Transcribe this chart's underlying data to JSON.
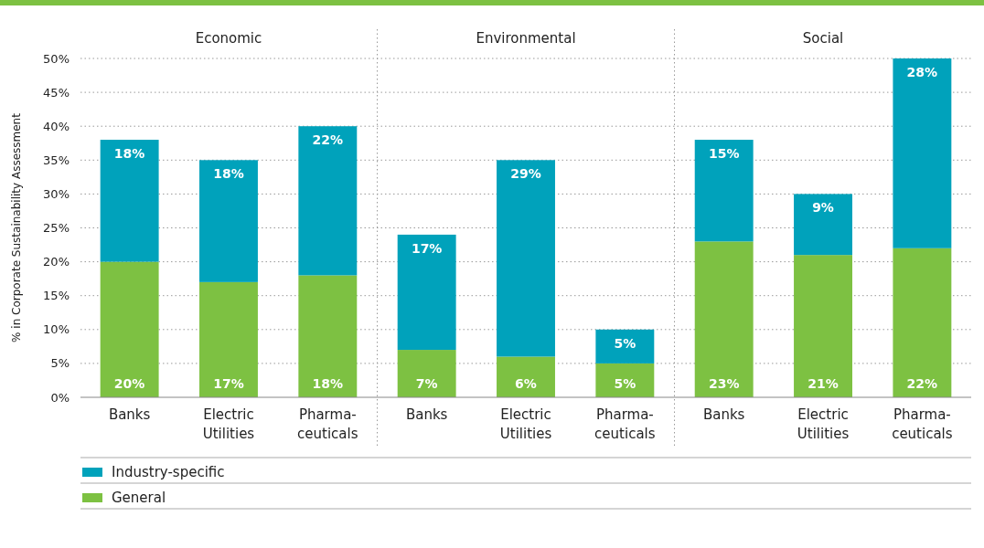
{
  "chart_data": {
    "type": "bar",
    "stacked": true,
    "ylabel": "% in Corporate Sustainability Assessment",
    "categories": [
      "Banks",
      "Electric Utilities",
      "Pharma-ceuticals",
      "Banks",
      "Electric Utilities",
      "Pharma-ceuticals",
      "Banks",
      "Electric Utilities",
      "Pharma-ceuticals"
    ],
    "series": [
      {
        "name": "General",
        "color": "#7dc142",
        "values": [
          20,
          17,
          18,
          7,
          6,
          5,
          23,
          21,
          22
        ],
        "value_labels": [
          "20%",
          "17%",
          "18%",
          "7%",
          "6%",
          "5%",
          "23%",
          "21%",
          "22%"
        ]
      },
      {
        "name": "Industry-specific",
        "color": "#00a2bb",
        "values": [
          18,
          18,
          22,
          17,
          29,
          5,
          15,
          9,
          28
        ],
        "value_labels": [
          "18%",
          "18%",
          "22%",
          "17%",
          "29%",
          "5%",
          "15%",
          "9%",
          "28%"
        ]
      }
    ],
    "ylim": [
      0,
      50
    ],
    "yticks": [
      {
        "value": 0,
        "label": "0%"
      },
      {
        "value": 5,
        "label": "5%"
      },
      {
        "value": 10,
        "label": "10%"
      },
      {
        "value": 15,
        "label": "15%"
      },
      {
        "value": 20,
        "label": "20%"
      },
      {
        "value": 25,
        "label": "25%"
      },
      {
        "value": 30,
        "label": "30%"
      },
      {
        "value": 35,
        "label": "35%"
      },
      {
        "value": 40,
        "label": "40%"
      },
      {
        "value": 45,
        "label": "45%"
      },
      {
        "value": 50,
        "label": "50%"
      }
    ],
    "grid": "y",
    "legend": "bottom",
    "annotations": [
      "Economic",
      "Environmental",
      "Social"
    ]
  }
}
